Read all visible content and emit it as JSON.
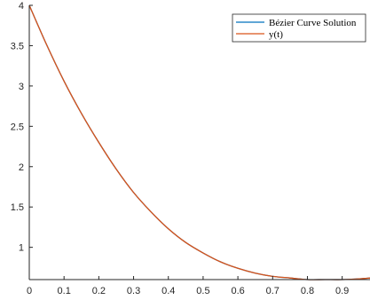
{
  "chart_data": {
    "type": "line",
    "title": "",
    "xlabel": "",
    "ylabel": "",
    "xlim": [
      0,
      0.98
    ],
    "ylim": [
      0.6,
      4
    ],
    "xticks": [
      "0",
      "0.1",
      "0.2",
      "0.3",
      "0.4",
      "0.5",
      "0.6",
      "0.7",
      "0.8",
      "0.9"
    ],
    "yticks": [
      "1",
      "1.5",
      "2",
      "2.5",
      "3",
      "3.5",
      "4"
    ],
    "grid": false,
    "legend_position": "top-right",
    "series": [
      {
        "name": "Bézier Curve Solution",
        "color": "#0072BD",
        "x": [
          0,
          0.05,
          0.1,
          0.15,
          0.2,
          0.25,
          0.3,
          0.35,
          0.4,
          0.45,
          0.5,
          0.55,
          0.6,
          0.65,
          0.7,
          0.75,
          0.8,
          0.85,
          0.9,
          0.95,
          0.98
        ],
        "y": [
          4.0,
          3.51,
          3.06,
          2.66,
          2.3,
          1.97,
          1.68,
          1.44,
          1.23,
          1.06,
          0.93,
          0.82,
          0.74,
          0.68,
          0.64,
          0.62,
          0.6,
          0.6,
          0.6,
          0.61,
          0.62
        ]
      },
      {
        "name": "y(t)",
        "color": "#D95319",
        "x": [
          0,
          0.05,
          0.1,
          0.15,
          0.2,
          0.25,
          0.3,
          0.35,
          0.4,
          0.45,
          0.5,
          0.55,
          0.6,
          0.65,
          0.7,
          0.75,
          0.8,
          0.85,
          0.9,
          0.95,
          0.98
        ],
        "y": [
          4.0,
          3.51,
          3.06,
          2.66,
          2.3,
          1.97,
          1.68,
          1.44,
          1.23,
          1.06,
          0.93,
          0.82,
          0.74,
          0.68,
          0.64,
          0.62,
          0.6,
          0.6,
          0.6,
          0.61,
          0.62
        ]
      }
    ]
  }
}
